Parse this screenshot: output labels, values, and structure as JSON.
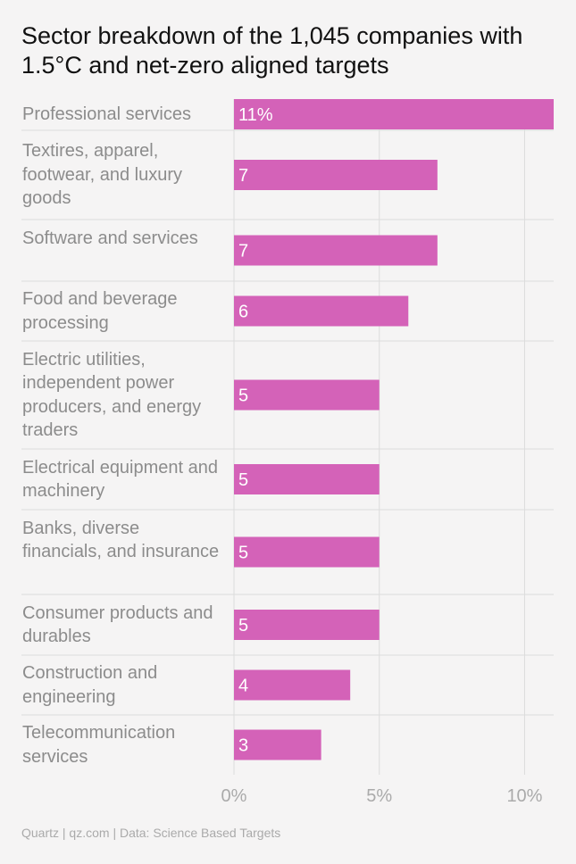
{
  "title": "Sector breakdown of the 1,045 companies with 1.5°C and net-zero aligned targets",
  "footer": "Quartz | qz.com | Data: Science Based Targets",
  "colors": {
    "bar": "#d462b8",
    "bar_label": "#ffffff",
    "grid": "#dcdcdc",
    "category_text": "#8c8c8c",
    "tick_text": "#aaaaaa",
    "title_text": "#111111",
    "background": "#f5f4f4"
  },
  "chart_data": {
    "type": "bar",
    "orientation": "horizontal",
    "categories": [
      "Professional services",
      "Textires, apparel, footwear, and luxury goods",
      "Software and services",
      "Food and beverage processing",
      "Electric utilities, independent power producers, and energy traders",
      "Electrical equipment and machinery",
      "Banks, diverse financials, and insurance",
      "Consumer products and durables",
      "Construction and engineering",
      "Telecommunication services"
    ],
    "values": [
      11,
      7,
      7,
      6,
      5,
      5,
      5,
      5,
      4,
      3
    ],
    "data_labels": [
      "11%",
      "7",
      "7",
      "6",
      "5",
      "5",
      "5",
      "5",
      "4",
      "3"
    ],
    "xlim": [
      0,
      11
    ],
    "xticks": [
      0,
      5,
      10
    ],
    "xtick_labels": [
      "0%",
      "5%",
      "10%"
    ],
    "grid": true,
    "legend": "none"
  }
}
